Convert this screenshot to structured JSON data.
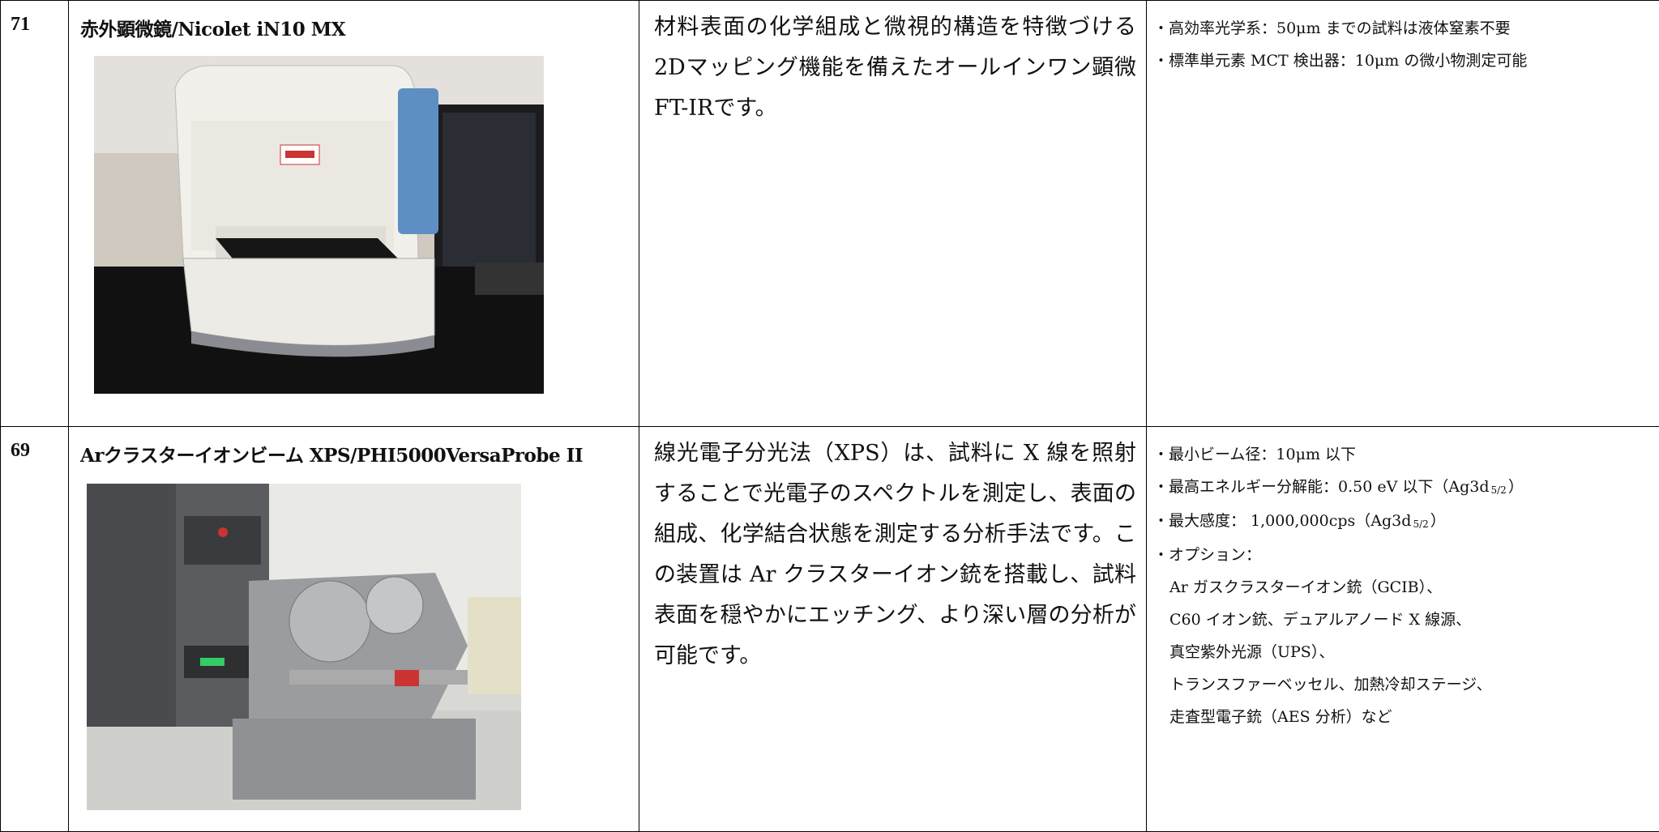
{
  "table": {
    "rows": [
      {
        "no": "71",
        "name": "赤外顕微鏡/Nicolet iN10 MX",
        "description": "材料表面の化学組成と微視的構造を特徴づける2Dマッピング機能を備えたオールインワン顕微FT-IRです。",
        "specs": [
          {
            "text": "・高効率光学系：50μm までの試料は液体窒素不要"
          },
          {
            "text": "・標準単元素 MCT 検出器：10μm の微小物測定可能"
          }
        ]
      },
      {
        "no": "69",
        "name": "Arクラスターイオンビーム XPS/PHI5000VersaProbe II",
        "description": "線光電子分光法（XPS）は、試料に X 線を照射することで光電子のスペクトルを測定し、表面の組成、化学結合状態を測定する分析手法です。この装置は Ar クラスターイオン銃を搭載し、試料表面を穏やかにエッチング、より深い層の分析が可能です。",
        "specs": [
          {
            "text": "・最小ビーム径：10μm 以下"
          },
          {
            "text": "・最高エネルギー分解能：0.50 eV 以下（Ag3d",
            "sub": "5/2",
            "after": "）"
          },
          {
            "text": "・最大感度： 1,000,000cps（Ag3d",
            "sub": "5/2",
            "after": "）"
          },
          {
            "text": "・オプション：",
            "items": [
              "Ar ガスクラスターイオン銃（GCIB）、",
              "C60 イオン銃、デュアルアノード X 線源、",
              "真空紫外光源（UPS）、",
              "トランスファーベッセル、加熱冷却ステージ、",
              "走査型電子銃（AES 分析）など"
            ]
          }
        ]
      }
    ]
  }
}
